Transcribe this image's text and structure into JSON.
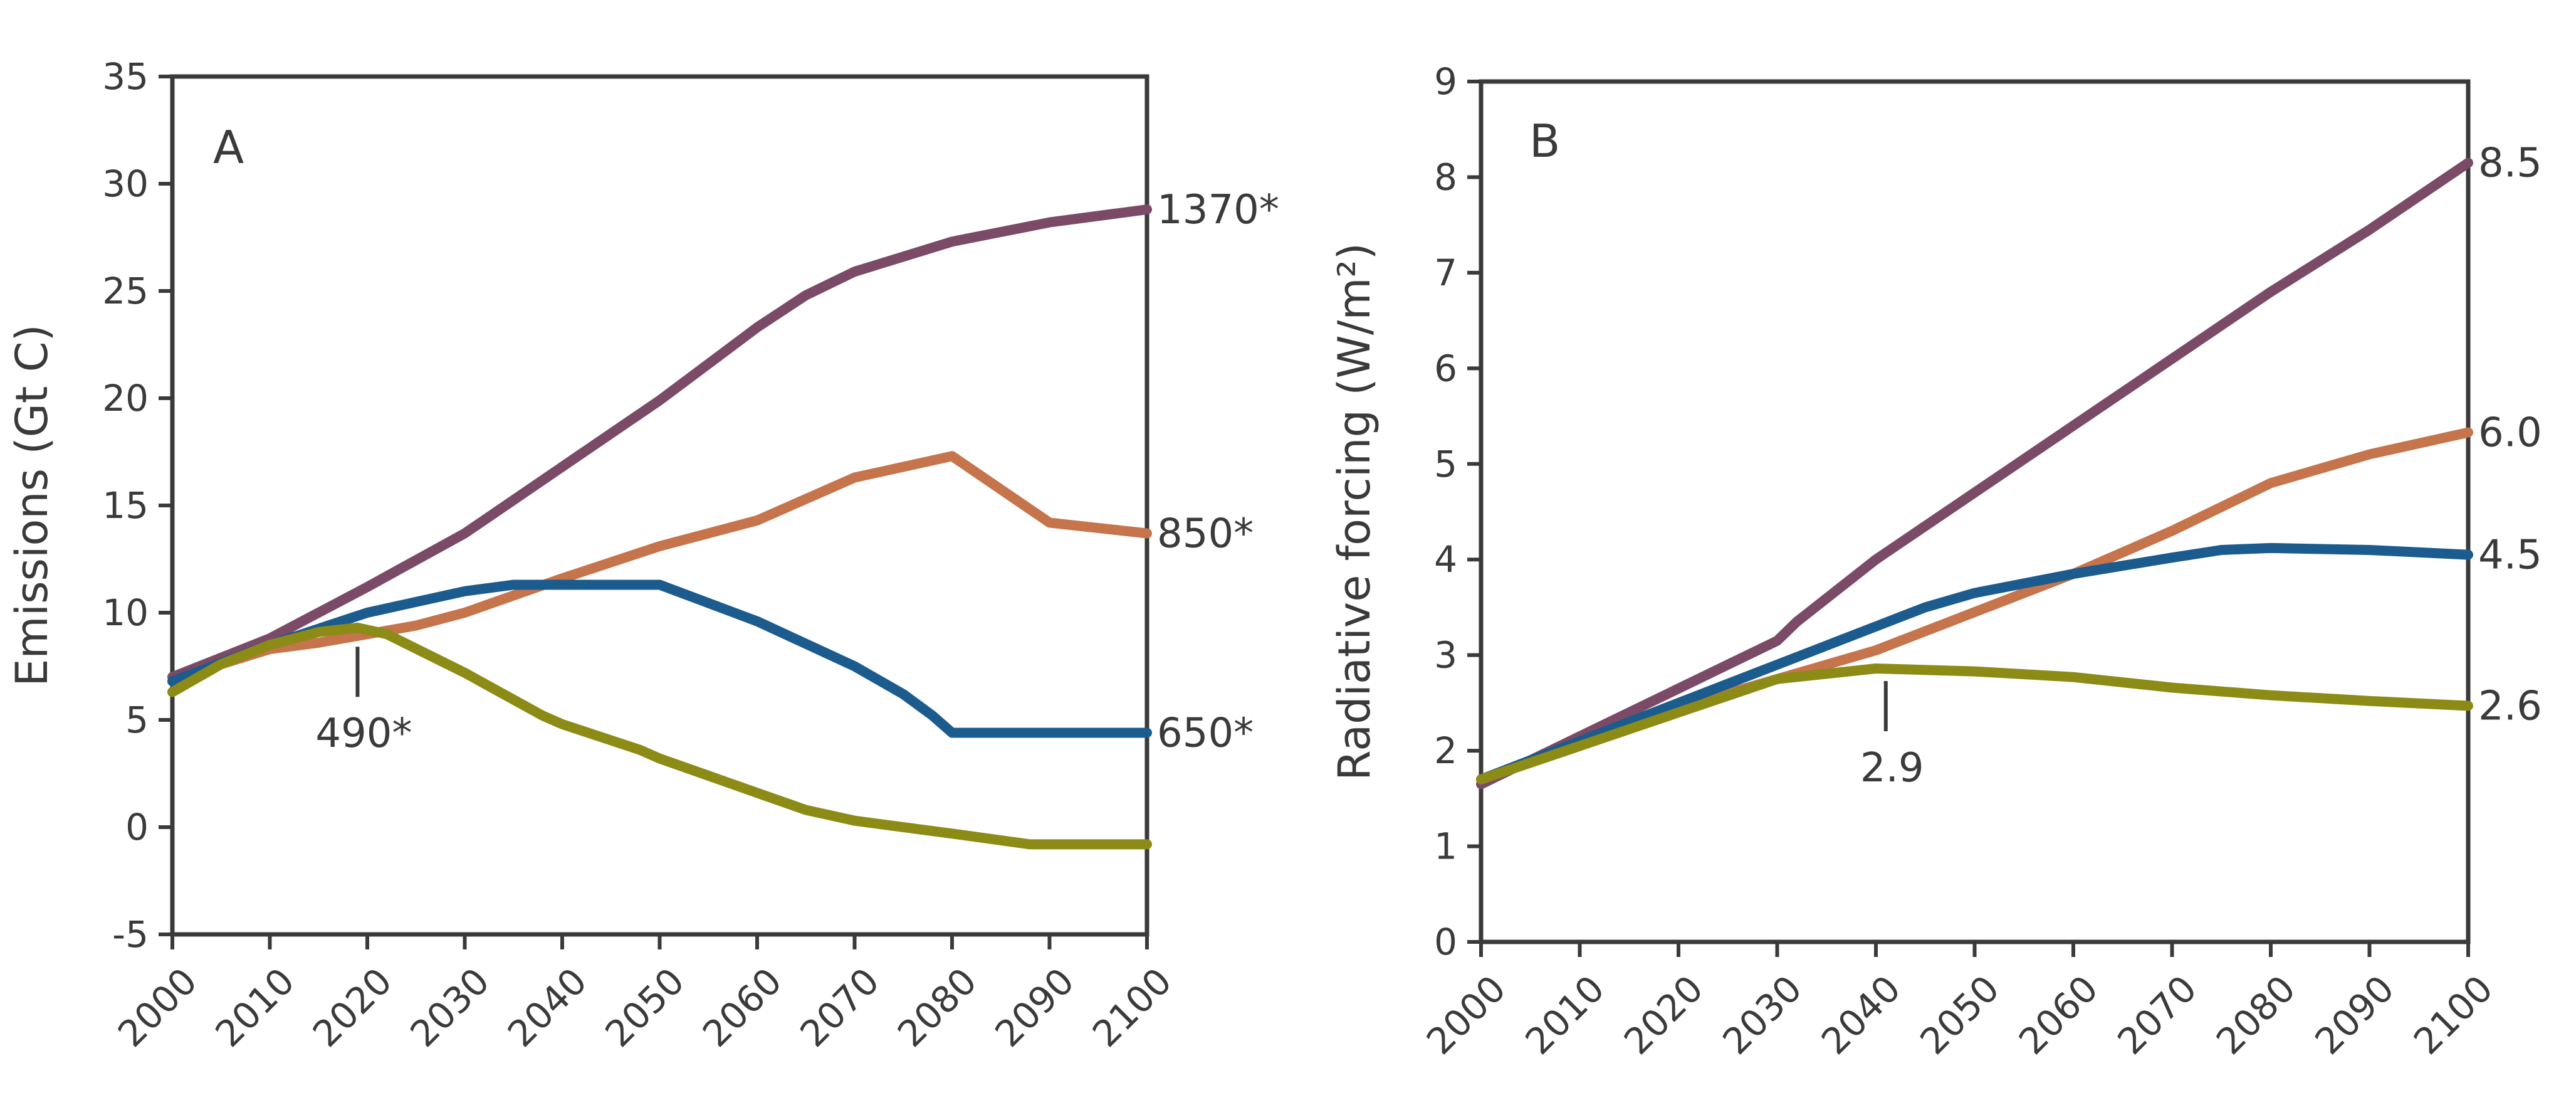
{
  "chart_data": [
    {
      "type": "line",
      "panel_label": "A",
      "xlabel": "",
      "ylabel": "Emissions (Gt C)",
      "xlim": [
        2000,
        2100
      ],
      "ylim": [
        -5,
        35
      ],
      "x_ticks": [
        2000,
        2010,
        2020,
        2030,
        2040,
        2050,
        2060,
        2070,
        2080,
        2090,
        2100
      ],
      "y_ticks": [
        -5,
        0,
        5,
        10,
        15,
        20,
        25,
        30,
        35
      ],
      "grid": false,
      "series": [
        {
          "color": "#7b4a67",
          "end_label": "1370*",
          "x": [
            2000,
            2010,
            2020,
            2030,
            2040,
            2050,
            2060,
            2065,
            2070,
            2080,
            2090,
            2100
          ],
          "y": [
            7,
            8.8,
            11.2,
            13.7,
            16.8,
            19.9,
            23.3,
            24.8,
            25.9,
            27.3,
            28.2,
            28.8
          ]
        },
        {
          "color": "#c5744c",
          "end_label": "850*",
          "x": [
            2000,
            2005,
            2010,
            2015,
            2020,
            2025,
            2030,
            2040,
            2050,
            2060,
            2070,
            2080,
            2090,
            2100
          ],
          "y": [
            6.3,
            7.6,
            8.3,
            8.6,
            9.0,
            9.4,
            10.0,
            11.6,
            13.1,
            14.3,
            16.3,
            17.3,
            14.2,
            13.7
          ]
        },
        {
          "color": "#1c5b8e",
          "end_label": "650*",
          "x": [
            2000,
            2010,
            2020,
            2030,
            2035,
            2040,
            2050,
            2060,
            2070,
            2075,
            2078,
            2080,
            2090,
            2100
          ],
          "y": [
            6.8,
            8.5,
            10.0,
            11.0,
            11.3,
            11.3,
            11.3,
            9.6,
            7.5,
            6.2,
            5.2,
            4.4,
            4.4,
            4.4
          ]
        },
        {
          "color": "#8b8b16",
          "end_label": "",
          "x": [
            2000,
            2005,
            2010,
            2015,
            2019,
            2022,
            2030,
            2038,
            2040,
            2048,
            2050,
            2060,
            2065,
            2070,
            2080,
            2088,
            2100
          ],
          "y": [
            6.3,
            7.6,
            8.5,
            9.1,
            9.3,
            9.0,
            7.2,
            5.2,
            4.8,
            3.6,
            3.2,
            1.6,
            0.8,
            0.3,
            -0.3,
            -0.8,
            -0.8
          ]
        }
      ],
      "annotations": [
        {
          "text": "490*",
          "x": 2019,
          "y": 9.0
        }
      ]
    },
    {
      "type": "line",
      "panel_label": "B",
      "xlabel": "",
      "ylabel": "Radiative forcing (W/m²)",
      "xlim": [
        2000,
        2100
      ],
      "ylim": [
        0,
        9
      ],
      "x_ticks": [
        2000,
        2010,
        2020,
        2030,
        2040,
        2050,
        2060,
        2070,
        2080,
        2090,
        2100
      ],
      "y_ticks": [
        0,
        1,
        2,
        3,
        4,
        5,
        6,
        7,
        8,
        9
      ],
      "grid": false,
      "series": [
        {
          "color": "#7b4a67",
          "end_label": "8.5",
          "x": [
            2000,
            2010,
            2020,
            2030,
            2032,
            2040,
            2050,
            2060,
            2070,
            2080,
            2090,
            2100
          ],
          "y": [
            1.65,
            2.15,
            2.65,
            3.15,
            3.35,
            4.0,
            4.7,
            5.4,
            6.1,
            6.8,
            7.45,
            8.15
          ]
        },
        {
          "color": "#c5744c",
          "end_label": "6.0",
          "x": [
            2000,
            2010,
            2020,
            2030,
            2040,
            2050,
            2060,
            2070,
            2075,
            2080,
            2090,
            2100
          ],
          "y": [
            1.7,
            2.05,
            2.45,
            2.75,
            3.05,
            3.45,
            3.85,
            4.3,
            4.55,
            4.8,
            5.1,
            5.33
          ]
        },
        {
          "color": "#1c5b8e",
          "end_label": "4.5",
          "x": [
            2000,
            2010,
            2020,
            2030,
            2040,
            2045,
            2050,
            2060,
            2070,
            2075,
            2080,
            2090,
            2100
          ],
          "y": [
            1.7,
            2.1,
            2.5,
            2.9,
            3.3,
            3.5,
            3.65,
            3.85,
            4.02,
            4.1,
            4.12,
            4.1,
            4.05
          ]
        },
        {
          "color": "#8b8b16",
          "end_label": "2.6",
          "x": [
            2000,
            2010,
            2020,
            2030,
            2040,
            2050,
            2060,
            2070,
            2080,
            2090,
            2100
          ],
          "y": [
            1.7,
            2.05,
            2.4,
            2.75,
            2.86,
            2.83,
            2.77,
            2.66,
            2.58,
            2.52,
            2.47
          ]
        }
      ],
      "annotations": [
        {
          "text": "2.9",
          "x": 2041,
          "y": 2.86
        }
      ]
    }
  ]
}
